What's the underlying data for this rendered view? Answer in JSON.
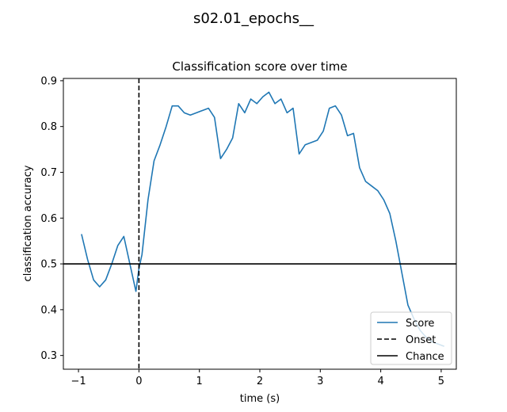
{
  "figure": {
    "suptitle": "s02.01_epochs__"
  },
  "chart_data": {
    "type": "line",
    "title": "Classification score over time",
    "xlabel": "time (s)",
    "ylabel": "classification accuracy",
    "xlim": [
      -1.25,
      5.25
    ],
    "ylim": [
      0.27,
      0.905
    ],
    "xticks": [
      -1,
      0,
      1,
      2,
      3,
      4,
      5
    ],
    "xtick_labels": [
      "−1",
      "0",
      "1",
      "2",
      "3",
      "4",
      "5"
    ],
    "yticks": [
      0.3,
      0.4,
      0.5,
      0.6,
      0.7,
      0.8,
      0.9
    ],
    "ytick_labels": [
      "0.3",
      "0.4",
      "0.5",
      "0.6",
      "0.7",
      "0.8",
      "0.9"
    ],
    "grid": false,
    "legend_position": "bottom-right",
    "series": [
      {
        "name": "Score",
        "color": "#1f77b4",
        "style": "solid",
        "x": [
          -0.95,
          -0.85,
          -0.75,
          -0.65,
          -0.55,
          -0.45,
          -0.35,
          -0.25,
          -0.15,
          -0.05,
          0.0,
          0.05,
          0.15,
          0.25,
          0.35,
          0.45,
          0.55,
          0.65,
          0.75,
          0.85,
          0.95,
          1.05,
          1.15,
          1.25,
          1.35,
          1.45,
          1.55,
          1.65,
          1.75,
          1.85,
          1.95,
          2.05,
          2.15,
          2.25,
          2.35,
          2.45,
          2.55,
          2.65,
          2.75,
          2.85,
          2.95,
          3.05,
          3.15,
          3.25,
          3.35,
          3.45,
          3.55,
          3.65,
          3.75,
          3.85,
          3.95,
          4.05,
          4.15,
          4.25,
          4.35,
          4.45,
          4.55,
          4.65,
          4.75,
          4.85,
          4.95,
          5.05
        ],
        "values": [
          0.565,
          0.51,
          0.465,
          0.45,
          0.465,
          0.5,
          0.54,
          0.56,
          0.5,
          0.44,
          0.49,
          0.52,
          0.64,
          0.725,
          0.76,
          0.8,
          0.845,
          0.845,
          0.83,
          0.825,
          0.83,
          0.835,
          0.84,
          0.82,
          0.73,
          0.75,
          0.775,
          0.85,
          0.83,
          0.86,
          0.85,
          0.865,
          0.875,
          0.85,
          0.86,
          0.83,
          0.84,
          0.74,
          0.76,
          0.765,
          0.77,
          0.79,
          0.84,
          0.845,
          0.825,
          0.78,
          0.785,
          0.71,
          0.68,
          0.67,
          0.66,
          0.64,
          0.61,
          0.55,
          0.48,
          0.41,
          0.38,
          0.355,
          0.34,
          0.33,
          0.325,
          0.32
        ]
      }
    ],
    "reference_lines": [
      {
        "name": "Onset",
        "orientation": "vertical",
        "value": 0,
        "color": "#000000",
        "style": "dashed"
      },
      {
        "name": "Chance",
        "orientation": "horizontal",
        "value": 0.5,
        "color": "#000000",
        "style": "solid"
      }
    ],
    "legend": [
      {
        "label": "Score",
        "color": "#1f77b4",
        "style": "solid"
      },
      {
        "label": "Onset",
        "color": "#000000",
        "style": "dashed"
      },
      {
        "label": "Chance",
        "color": "#000000",
        "style": "solid"
      }
    ]
  }
}
